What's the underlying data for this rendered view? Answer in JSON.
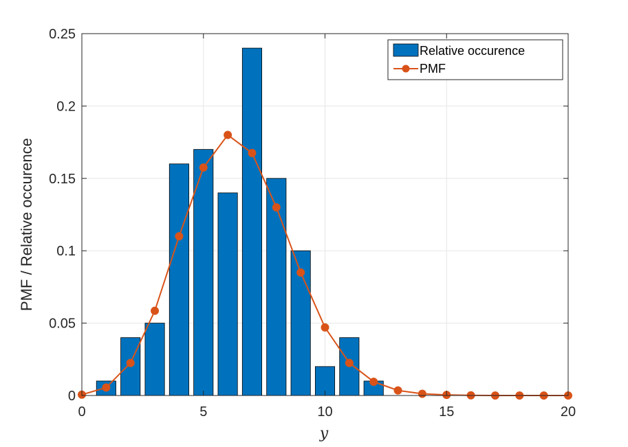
{
  "chart_data": {
    "type": "bar",
    "title": "",
    "xlabel": "y",
    "ylabel": "PMF / Relative occurence",
    "xlim": [
      0,
      20
    ],
    "ylim": [
      0,
      0.25
    ],
    "xticks": [
      0,
      5,
      10,
      15,
      20
    ],
    "xtick_labels": [
      "0",
      "5",
      "10",
      "15",
      "20"
    ],
    "yticks": [
      0,
      0.05,
      0.1,
      0.15,
      0.2,
      0.25
    ],
    "ytick_labels": [
      "0",
      "0.05",
      "0.1",
      "0.15",
      "0.2",
      "0.25"
    ],
    "grid": true,
    "legend_position": "top-right",
    "series": [
      {
        "name": "Relative occurence",
        "type": "bar",
        "color": "#0072BD",
        "x": [
          1,
          2,
          3,
          4,
          5,
          6,
          7,
          8,
          9,
          10,
          11,
          12
        ],
        "values": [
          0.01,
          0.04,
          0.05,
          0.16,
          0.17,
          0.14,
          0.24,
          0.15,
          0.1,
          0.02,
          0.04,
          0.01
        ]
      },
      {
        "name": "PMF",
        "type": "line",
        "marker": "circle",
        "color": "#D95319",
        "x": [
          0,
          1,
          2,
          3,
          4,
          5,
          6,
          7,
          8,
          9,
          10,
          11,
          12,
          13,
          14,
          15,
          16,
          17,
          18,
          19,
          20
        ],
        "values": [
          0.0006,
          0.0055,
          0.0225,
          0.0585,
          0.11,
          0.1575,
          0.18,
          0.1675,
          0.13,
          0.085,
          0.047,
          0.0225,
          0.0095,
          0.0035,
          0.0012,
          0.0004,
          0.0001,
          0.0,
          0.0,
          0.0,
          0.0
        ]
      }
    ]
  }
}
